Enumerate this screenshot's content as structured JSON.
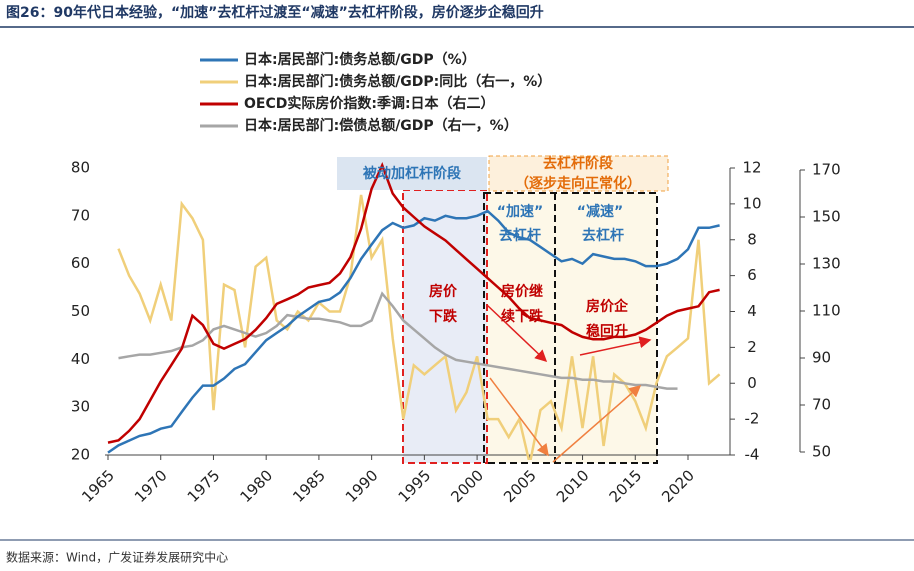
{
  "chart_data": {
    "type": "line",
    "title": "图26：90年代日本经验，“加速”去杠杆过渡至“减速”去杠杆阶段，房价逐步企稳回升",
    "source": "数据来源：Wind，广发证券发展研究中心",
    "x": [
      1965,
      1966,
      1967,
      1968,
      1969,
      1970,
      1971,
      1972,
      1973,
      1974,
      1975,
      1976,
      1977,
      1978,
      1979,
      1980,
      1981,
      1982,
      1983,
      1984,
      1985,
      1986,
      1987,
      1988,
      1989,
      1990,
      1991,
      1992,
      1993,
      1994,
      1995,
      1996,
      1997,
      1998,
      1999,
      2000,
      2001,
      2002,
      2003,
      2004,
      2005,
      2006,
      2007,
      2008,
      2009,
      2010,
      2011,
      2012,
      2013,
      2014,
      2015,
      2016,
      2017,
      2018,
      2019,
      2020,
      2021,
      2022,
      2023
    ],
    "xlim": [
      1965,
      2024
    ],
    "xticks": [
      1965,
      1970,
      1975,
      1980,
      1985,
      1990,
      1995,
      2000,
      2005,
      2010,
      2015,
      2020
    ],
    "ylim": [
      20,
      80
    ],
    "yticks": [
      20,
      30,
      40,
      50,
      60,
      70,
      80
    ],
    "y2lim": [
      -4,
      12
    ],
    "y2ticks": [
      -4,
      -2,
      0,
      2,
      4,
      6,
      8,
      10,
      12
    ],
    "y3lim": [
      50,
      170
    ],
    "y3ticks": [
      50,
      70,
      90,
      110,
      130,
      150,
      170
    ],
    "series": [
      {
        "name": "日本:居民部门:债务总额/GDP（%）",
        "color": "#2e75b6",
        "axis": "y",
        "values": [
          20.5,
          22,
          23,
          24,
          24.5,
          25.5,
          26,
          29,
          32,
          34.5,
          34.5,
          36,
          38,
          39,
          41.5,
          44,
          45.5,
          47,
          49,
          50.5,
          52,
          52.5,
          54,
          57,
          61,
          64,
          67,
          68.5,
          67.5,
          68,
          69.5,
          69,
          70,
          69.5,
          69.5,
          70,
          71,
          69,
          66.5,
          65.5,
          65,
          63.5,
          62,
          60.5,
          61,
          60,
          62,
          61.5,
          61,
          61,
          60.5,
          59.5,
          59.5,
          60,
          61,
          63,
          67.5,
          67.5,
          68
        ]
      },
      {
        "name": "日本:居民部门:债务总额/GDP:同比（右一，%）",
        "color": "#f0cf7a",
        "axis": "y2",
        "values": [
          null,
          7.5,
          6,
          5,
          3.5,
          5.5,
          3.5,
          10,
          9.2,
          8,
          -1.5,
          5.5,
          5.2,
          2,
          6.5,
          7,
          3.5,
          3,
          4,
          3.5,
          4.5,
          4,
          4,
          6,
          10.5,
          7,
          8,
          2.5,
          -2,
          1,
          0.5,
          1,
          1.5,
          -1.5,
          -0.5,
          1.5,
          -2,
          -2,
          -3,
          -2,
          -4.5,
          -1.5,
          -1,
          -2.5,
          1.5,
          -2.5,
          1.5,
          -3.5,
          0.5,
          0,
          -1,
          -2.5,
          0,
          1.5,
          2,
          2.5,
          8,
          0,
          0.5
        ]
      },
      {
        "name": "OECD实际房价指数:季调:日本（右二）",
        "color": "#c00000",
        "axis": "y3",
        "values": [
          54,
          55,
          59,
          64,
          72,
          80,
          87,
          94,
          108,
          104,
          96,
          94,
          96,
          98,
          102,
          107,
          113,
          115,
          117,
          120,
          121,
          122,
          126,
          133,
          145,
          162,
          172,
          160,
          154,
          150,
          146,
          143,
          140,
          136,
          132,
          128,
          124,
          120,
          116,
          111,
          107,
          106,
          105,
          104,
          101,
          99,
          98,
          98,
          99,
          99,
          100,
          102,
          105,
          108,
          110,
          111,
          112,
          118,
          119
        ]
      },
      {
        "name": "日本:居民部门:偿债总额/GDP（右一，%）",
        "color": "#a6a6a6",
        "axis": "y2",
        "values": [
          null,
          1.4,
          1.5,
          1.6,
          1.6,
          1.7,
          1.8,
          2.0,
          2.1,
          2.4,
          3.0,
          3.2,
          3.0,
          2.8,
          2.6,
          2.8,
          3.2,
          3.8,
          3.7,
          3.6,
          3.6,
          3.5,
          3.4,
          3.2,
          3.2,
          3.5,
          5.0,
          4.3,
          3.5,
          3.0,
          2.5,
          2.0,
          1.6,
          1.3,
          1.2,
          1.1,
          1.0,
          0.9,
          0.8,
          0.7,
          0.6,
          0.5,
          0.4,
          0.3,
          0.3,
          0.2,
          0.2,
          0.1,
          0.1,
          0.0,
          -0.1,
          -0.1,
          -0.2,
          -0.3,
          -0.3,
          null,
          null,
          null,
          null
        ]
      }
    ],
    "annotations": [
      "被动加杠杆阶段",
      "去杠杆阶段",
      "（逐步走向正常化）",
      "“加速”",
      "去杠杆",
      "“减速”",
      "去杠杆",
      "房价",
      "下跌",
      "房价继",
      "续下跌",
      "房价企",
      "稳回升"
    ]
  }
}
